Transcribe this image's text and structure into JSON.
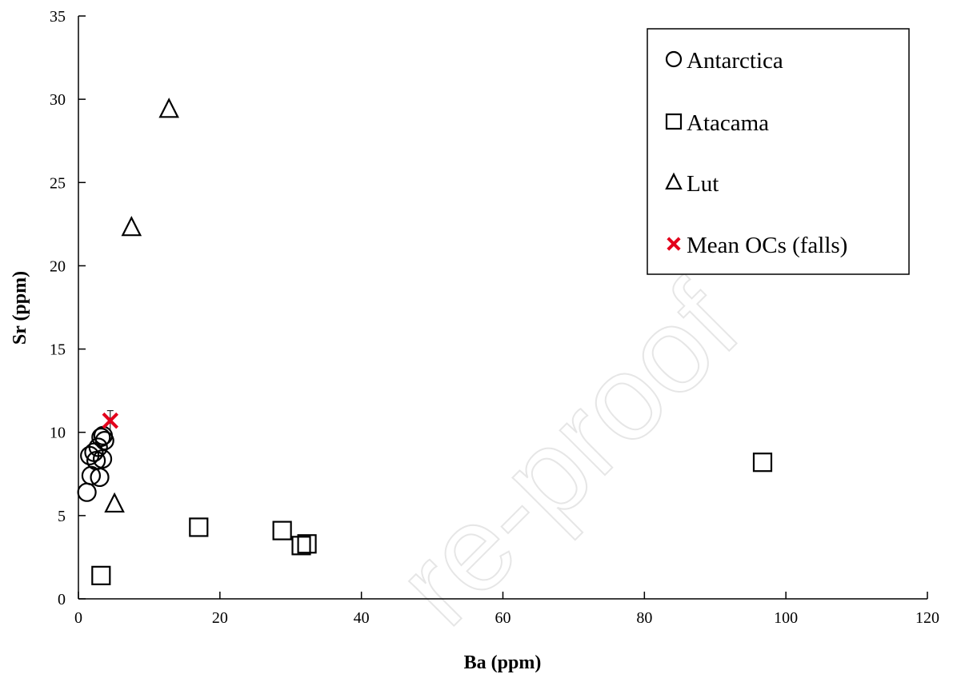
{
  "chart_data": {
    "type": "scatter",
    "title": "",
    "xlabel": "Ba (ppm)",
    "ylabel": "Sr (ppm)",
    "xlim": [
      0,
      120
    ],
    "ylim": [
      0,
      35
    ],
    "x_ticks": [
      0,
      20,
      40,
      60,
      80,
      100,
      120
    ],
    "y_ticks": [
      0,
      5,
      10,
      15,
      20,
      25,
      30,
      35
    ],
    "grid": false,
    "legend_position": "top-right",
    "series": [
      {
        "name": "Antarctica",
        "marker": "circle",
        "color": "#000000",
        "x": [
          1.2,
          1.6,
          1.8,
          2.2,
          2.5,
          2.8,
          3.0,
          3.2,
          3.4,
          3.5,
          3.7
        ],
        "y": [
          6.4,
          8.6,
          7.4,
          8.8,
          8.3,
          9.1,
          7.3,
          9.7,
          8.4,
          9.8,
          9.5
        ]
      },
      {
        "name": "Atacama",
        "marker": "square",
        "color": "#000000",
        "x": [
          3.2,
          17.0,
          28.8,
          31.5,
          32.3,
          96.7
        ],
        "y": [
          1.4,
          4.3,
          4.1,
          3.2,
          3.3,
          8.2
        ]
      },
      {
        "name": "Lut",
        "marker": "triangle",
        "color": "#000000",
        "x": [
          5.1,
          7.5,
          12.8
        ],
        "y": [
          5.7,
          22.3,
          29.4
        ]
      },
      {
        "name": "Mean OCs (falls)",
        "marker": "x",
        "color": "#e3001b",
        "x": [
          4.5
        ],
        "y": [
          10.7
        ],
        "error_y": [
          0.6
        ]
      }
    ]
  },
  "watermark": "re-proof"
}
